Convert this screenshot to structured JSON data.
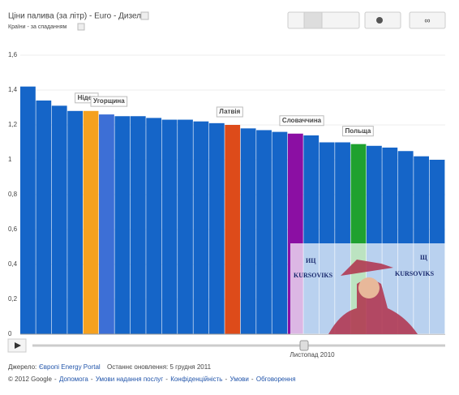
{
  "chart_data": {
    "type": "bar",
    "title": "Ціни палива (за літр) - Euro - Дизель",
    "subtitle": "Країни - за спаданням",
    "categories": [
      null,
      null,
      null,
      null,
      "Нідер",
      "Угорщина",
      null,
      null,
      null,
      null,
      null,
      null,
      null,
      "Латвія",
      null,
      null,
      null,
      "Словаччина",
      null,
      null,
      null,
      "Польща",
      null,
      null,
      null,
      null,
      null
    ],
    "values": [
      1.42,
      1.34,
      1.31,
      1.28,
      1.28,
      1.26,
      1.25,
      1.25,
      1.24,
      1.23,
      1.23,
      1.22,
      1.21,
      1.2,
      1.18,
      1.17,
      1.16,
      1.15,
      1.14,
      1.1,
      1.1,
      1.09,
      1.08,
      1.07,
      1.05,
      1.02,
      1.0
    ],
    "colors": [
      "#1565c8",
      "#1565c8",
      "#1565c8",
      "#1565c8",
      "#f5a11f",
      "#3d6fd6",
      "#1565c8",
      "#1565c8",
      "#1565c8",
      "#1565c8",
      "#1565c8",
      "#1565c8",
      "#1565c8",
      "#dd4b1a",
      "#1565c8",
      "#1565c8",
      "#1565c8",
      "#8b0fa3",
      "#1565c8",
      "#1565c8",
      "#1565c8",
      "#1fa12f",
      "#1565c8",
      "#1565c8",
      "#1565c8",
      "#1565c8",
      "#1565c8"
    ],
    "ylim": [
      0,
      1.6
    ],
    "yticks": [
      0,
      {
        "value": 0.2,
        "label": "0,2"
      },
      {
        "value": 0.4,
        "label": "0,4"
      },
      {
        "value": 0.6,
        "label": "0,6"
      },
      {
        "value": 0.8,
        "label": "0,8"
      },
      1,
      {
        "value": 1.2,
        "label": "1,2"
      },
      {
        "value": 1.4,
        "label": "1,4"
      },
      {
        "value": 1.6,
        "label": "1,6"
      }
    ],
    "grid": true,
    "time_label": "Листопад 2010",
    "source_label": "Джерело:",
    "source": "Європі Energy Portal",
    "updated": "Останнє оновлення: 5 грудня 2011",
    "footer": [
      "© 2012 Google",
      "Допомога",
      "Умови надання послуг",
      "Конфіденційність",
      "Умови",
      "Обговорення"
    ],
    "watermark": [
      "ИЦ",
      "KURSOVIKS",
      "Щ",
      "KURSOVIKS"
    ]
  }
}
